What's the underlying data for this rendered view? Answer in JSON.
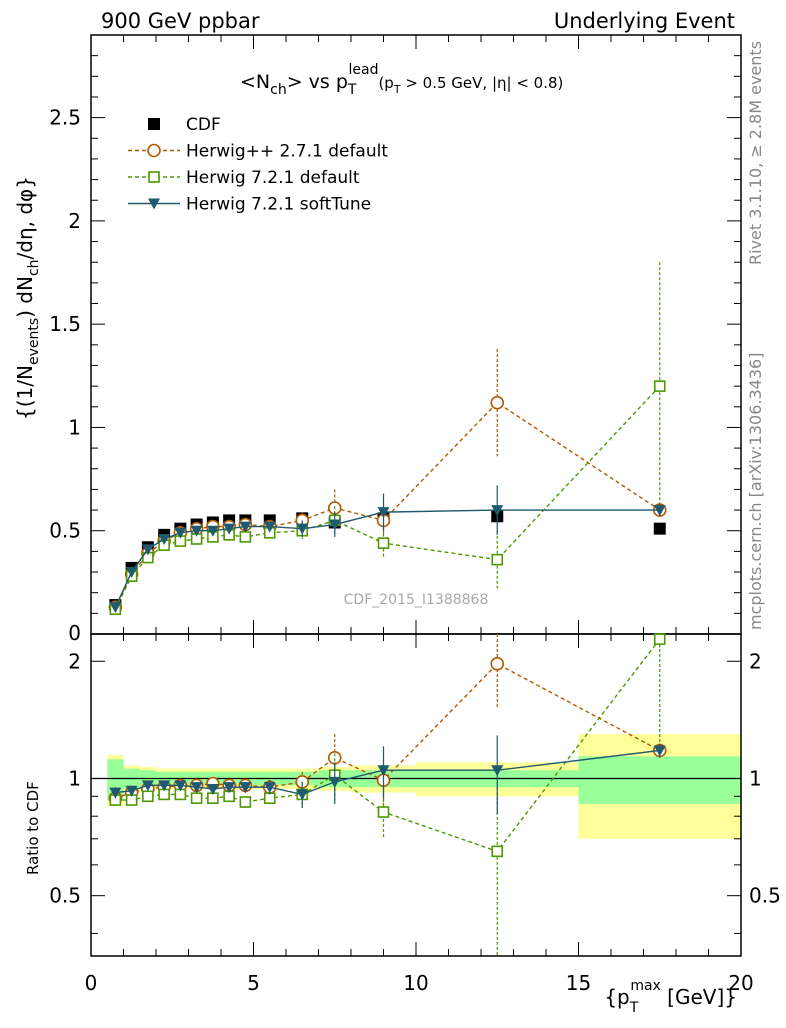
{
  "header": {
    "left": "900 GeV ppbar",
    "right": "Underlying Event"
  },
  "side_labels": {
    "rivet": "Rivet 3.1.10, ≥ 2.8M events",
    "mcplots": "mcplots.cern.ch [arXiv:1306.3436]"
  },
  "chart_data": [
    {
      "type": "scatter",
      "title": "<N_ch> vs p_T^lead (p_T > 0.5 GeV, |η| < 0.8)",
      "title_parts": {
        "main": "<N",
        "sub1": "ch",
        "mid": "> vs p",
        "sub2": "T",
        "sup2": "lead",
        "cuts_a": "(p",
        "cuts_sub": "T",
        "cuts_b": " > 0.5 GeV, |η| < 0.8)"
      },
      "ylabel": "{(1/N_events) dN_ch/dη, dφ}",
      "ylabel_parts": {
        "a": "{(1/N",
        "sub1": "events",
        "b": ") dN",
        "sub2": "ch",
        "c": "/dη, dφ}"
      },
      "watermark": "CDF_2015_I1388868",
      "xlim": [
        0,
        20
      ],
      "ylim": [
        0,
        2.9
      ],
      "x_ticks": [
        "0",
        "5",
        "10",
        "15",
        "20"
      ],
      "y_ticks": [
        "0.5",
        "1",
        "1.5",
        "2",
        "2.5"
      ],
      "y_tick_zero": "0",
      "legend_position": "top-left",
      "series": [
        {
          "name": "CDF",
          "color": "#000000",
          "marker": "filled-square",
          "x": [
            0.75,
            1.25,
            1.75,
            2.25,
            2.75,
            3.25,
            3.75,
            4.25,
            4.75,
            5.5,
            6.5,
            7.5,
            9.0,
            12.5,
            17.5
          ],
          "y": [
            0.14,
            0.32,
            0.42,
            0.48,
            0.51,
            0.53,
            0.54,
            0.55,
            0.55,
            0.55,
            0.56,
            0.54,
            0.56,
            0.57,
            0.51
          ]
        },
        {
          "name": "Herwig++ 2.7.1 default",
          "color": "#b35900",
          "marker": "open-circle",
          "x": [
            0.75,
            1.25,
            1.75,
            2.25,
            2.75,
            3.25,
            3.75,
            4.25,
            4.75,
            5.5,
            6.5,
            7.5,
            9.0,
            12.5,
            17.5
          ],
          "y": [
            0.13,
            0.29,
            0.39,
            0.45,
            0.49,
            0.51,
            0.52,
            0.52,
            0.53,
            0.52,
            0.55,
            0.61,
            0.55,
            1.12,
            0.6
          ],
          "err": [
            0.01,
            0.01,
            0.01,
            0.01,
            0.01,
            0.01,
            0.01,
            0.01,
            0.02,
            0.02,
            0.04,
            0.09,
            0.07,
            0.26,
            0.02
          ]
        },
        {
          "name": "Herwig 7.2.1 default",
          "color": "#4d9900",
          "marker": "open-square",
          "x": [
            0.75,
            1.25,
            1.75,
            2.25,
            2.75,
            3.25,
            3.75,
            4.25,
            4.75,
            5.5,
            6.5,
            7.5,
            9.0,
            12.5,
            17.5
          ],
          "y": [
            0.12,
            0.28,
            0.37,
            0.43,
            0.45,
            0.46,
            0.47,
            0.48,
            0.47,
            0.49,
            0.5,
            0.55,
            0.44,
            0.36,
            1.2
          ],
          "err": [
            0.01,
            0.01,
            0.01,
            0.01,
            0.01,
            0.01,
            0.01,
            0.01,
            0.02,
            0.02,
            0.04,
            0.07,
            0.07,
            0.14,
            0.6
          ]
        },
        {
          "name": "Herwig 7.2.1 softTune",
          "color": "#1f5a6e",
          "marker": "filled-triangle-down",
          "x": [
            0.75,
            1.25,
            1.75,
            2.25,
            2.75,
            3.25,
            3.75,
            4.25,
            4.75,
            5.5,
            6.5,
            7.5,
            9.0,
            12.5,
            17.5
          ],
          "y": [
            0.13,
            0.3,
            0.41,
            0.46,
            0.49,
            0.5,
            0.5,
            0.51,
            0.52,
            0.52,
            0.51,
            0.53,
            0.59,
            0.6,
            0.6
          ],
          "err": [
            0.01,
            0.01,
            0.01,
            0.01,
            0.01,
            0.01,
            0.01,
            0.01,
            0.02,
            0.02,
            0.04,
            0.06,
            0.09,
            0.12,
            0.03
          ]
        }
      ]
    },
    {
      "type": "scatter",
      "ylabel": "Ratio to CDF",
      "xlabel": "{p_T^max [GeV]}",
      "xlabel_parts": {
        "a": "{p",
        "sub": "T",
        "sup": "max",
        "b": " [GeV]}"
      },
      "xlim": [
        0,
        20
      ],
      "ylim": [
        0.35,
        2.35
      ],
      "y_ticks": [
        "0.5",
        "1",
        "2"
      ],
      "reference_line": 1,
      "bands": {
        "x_edges": [
          0.5,
          1.0,
          1.5,
          2.0,
          2.5,
          3.0,
          3.5,
          4.0,
          4.5,
          5.0,
          6.0,
          7.0,
          8.0,
          10.0,
          15.0,
          20.0
        ],
        "inner": [
          0.12,
          0.06,
          0.05,
          0.04,
          0.04,
          0.04,
          0.04,
          0.04,
          0.04,
          0.04,
          0.04,
          0.05,
          0.05,
          0.05,
          0.14
        ],
        "outer": [
          0.15,
          0.08,
          0.07,
          0.06,
          0.06,
          0.06,
          0.06,
          0.06,
          0.06,
          0.06,
          0.06,
          0.07,
          0.08,
          0.1,
          0.3
        ],
        "inner_color": "#99ff99",
        "outer_color": "#ffff99"
      },
      "series": [
        {
          "name": "Herwig++ 2.7.1 default",
          "color": "#b35900",
          "marker": "open-circle",
          "x": [
            0.75,
            1.25,
            1.75,
            2.25,
            2.75,
            3.25,
            3.75,
            4.25,
            4.75,
            5.5,
            6.5,
            7.5,
            9.0,
            12.5,
            17.5
          ],
          "y": [
            0.89,
            0.92,
            0.94,
            0.95,
            0.96,
            0.96,
            0.97,
            0.96,
            0.96,
            0.95,
            0.98,
            1.13,
            0.99,
            1.97,
            1.18
          ],
          "err": [
            0.03,
            0.02,
            0.02,
            0.02,
            0.02,
            0.02,
            0.02,
            0.03,
            0.03,
            0.04,
            0.06,
            0.17,
            0.14,
            0.46,
            0.04
          ]
        },
        {
          "name": "Herwig 7.2.1 default",
          "color": "#4d9900",
          "marker": "open-square",
          "x": [
            0.75,
            1.25,
            1.75,
            2.25,
            2.75,
            3.25,
            3.75,
            4.25,
            4.75,
            5.5,
            6.5,
            7.5,
            9.0,
            12.5,
            17.5
          ],
          "y": [
            0.88,
            0.88,
            0.9,
            0.91,
            0.91,
            0.89,
            0.89,
            0.9,
            0.87,
            0.89,
            0.91,
            1.02,
            0.82,
            0.65,
            2.28
          ],
          "err": [
            0.03,
            0.02,
            0.02,
            0.02,
            0.02,
            0.02,
            0.02,
            0.03,
            0.03,
            0.04,
            0.07,
            0.14,
            0.12,
            0.33,
            1.1
          ]
        },
        {
          "name": "Herwig 7.2.1 softTune",
          "color": "#1f5a6e",
          "marker": "filled-triangle-down",
          "x": [
            0.75,
            1.25,
            1.75,
            2.25,
            2.75,
            3.25,
            3.75,
            4.25,
            4.75,
            5.5,
            6.5,
            7.5,
            9.0,
            12.5,
            17.5
          ],
          "y": [
            0.92,
            0.93,
            0.96,
            0.96,
            0.96,
            0.95,
            0.94,
            0.95,
            0.95,
            0.95,
            0.91,
            0.98,
            1.05,
            1.05,
            1.18
          ],
          "err": [
            0.03,
            0.02,
            0.02,
            0.02,
            0.02,
            0.02,
            0.02,
            0.03,
            0.03,
            0.04,
            0.07,
            0.12,
            0.16,
            0.24,
            0.05
          ]
        }
      ]
    }
  ]
}
